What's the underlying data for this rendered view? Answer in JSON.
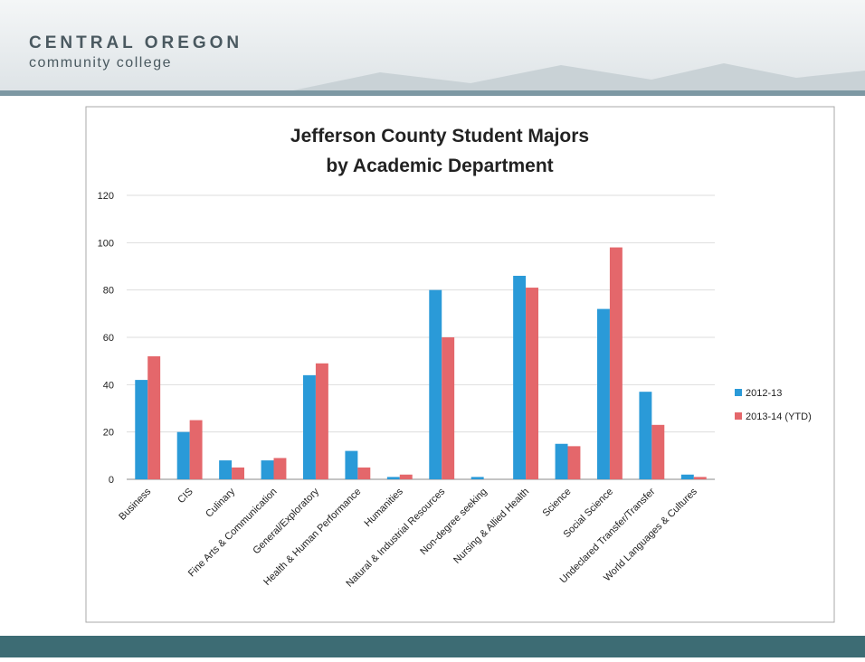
{
  "header": {
    "title": "CENTRAL OREGON",
    "subtitle": "community college"
  },
  "chart_data": {
    "type": "bar",
    "title": [
      "Jefferson County Student Majors",
      "by Academic Department"
    ],
    "categories": [
      "Business",
      "CIS",
      "Culinary",
      "Fine Arts & Communication",
      "General/Exploratory",
      "Health & Human Performance",
      "Humanities",
      "Natural & Industrial Resources",
      "Non-degree seeking",
      "Nursing & Allied Health",
      "Science",
      "Social Science",
      "Undeclared Transfer/Transfer",
      "World Languages & Cultures"
    ],
    "series": [
      {
        "name": "2012-13",
        "color": "#2a9ad8",
        "values": [
          42,
          20,
          8,
          8,
          44,
          12,
          1,
          80,
          1,
          86,
          15,
          72,
          37,
          2
        ]
      },
      {
        "name": "2013-14 (YTD)",
        "color": "#e4676b",
        "values": [
          52,
          25,
          5,
          9,
          49,
          5,
          2,
          60,
          0,
          81,
          14,
          98,
          23,
          1
        ]
      }
    ],
    "ylim": [
      0,
      120
    ],
    "yticks": [
      0,
      20,
      40,
      60,
      80,
      100,
      120
    ],
    "grid": true,
    "legend": "right"
  }
}
